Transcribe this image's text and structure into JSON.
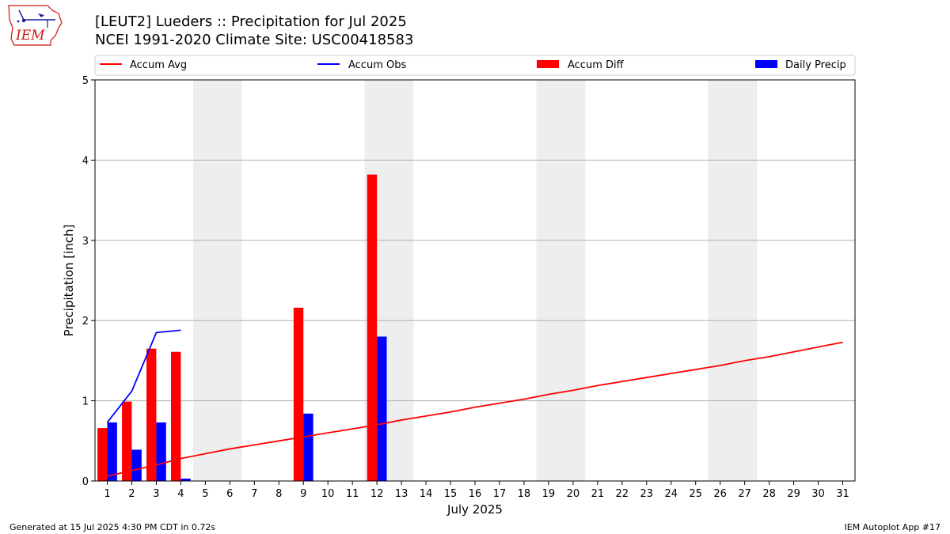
{
  "header": {
    "title_line1": "[LEUT2] Lueders :: Precipitation for Jul 2025",
    "title_line2": "NCEI 1991-2020 Climate Site: USC00418583"
  },
  "logo": {
    "text": "IEM",
    "icon": "iem-logo-icon"
  },
  "footer": {
    "generated": "Generated at 15 Jul 2025 4:30 PM CDT in 0.72s",
    "app": "IEM Autoplot App #17"
  },
  "colors": {
    "accum_avg": "#ff0000",
    "accum_obs": "#0000ff",
    "accum_diff": "#ff0000",
    "daily_precip": "#0000ff",
    "weekend_shade": "#eeeeee",
    "grid": "#b0b0b0"
  },
  "chart_data": {
    "type": "bar",
    "xlabel": "July 2025",
    "ylabel": "Precipitation [inch]",
    "ylim": [
      0,
      5
    ],
    "yticks": [
      0,
      1,
      2,
      3,
      4,
      5
    ],
    "xlim": [
      0.5,
      31.5
    ],
    "days": [
      1,
      2,
      3,
      4,
      5,
      6,
      7,
      8,
      9,
      10,
      11,
      12,
      13,
      14,
      15,
      16,
      17,
      18,
      19,
      20,
      21,
      22,
      23,
      24,
      25,
      26,
      27,
      28,
      29,
      30,
      31
    ],
    "grid": "horizontal",
    "legend_position": "top",
    "weekend_shading": [
      [
        5,
        6
      ],
      [
        12,
        13
      ],
      [
        19,
        20
      ],
      [
        26,
        27
      ]
    ],
    "legend": [
      {
        "key": "accum_avg",
        "label": "Accum Avg",
        "kind": "line"
      },
      {
        "key": "accum_obs",
        "label": "Accum Obs",
        "kind": "line"
      },
      {
        "key": "accum_diff",
        "label": "Accum Diff",
        "kind": "bar"
      },
      {
        "key": "daily_precip",
        "label": "Daily Precip",
        "kind": "bar"
      }
    ],
    "series": [
      {
        "name": "Accum Avg",
        "kind": "line",
        "x": [
          1,
          2,
          3,
          4,
          5,
          6,
          7,
          8,
          9,
          10,
          11,
          12,
          13,
          14,
          15,
          16,
          17,
          18,
          19,
          20,
          21,
          22,
          23,
          24,
          25,
          26,
          27,
          28,
          29,
          30,
          31
        ],
        "values": [
          0.06,
          0.13,
          0.2,
          0.28,
          0.34,
          0.4,
          0.45,
          0.5,
          0.55,
          0.6,
          0.65,
          0.7,
          0.76,
          0.81,
          0.86,
          0.92,
          0.97,
          1.02,
          1.08,
          1.13,
          1.19,
          1.24,
          1.29,
          1.34,
          1.39,
          1.44,
          1.5,
          1.55,
          1.61,
          1.67,
          1.73
        ]
      },
      {
        "name": "Accum Obs",
        "kind": "line",
        "x": [
          1,
          2,
          3,
          4
        ],
        "values": [
          0.73,
          1.12,
          1.85,
          1.88
        ]
      },
      {
        "name": "Accum Diff",
        "kind": "bar",
        "x": [
          1,
          2,
          3,
          4,
          9,
          12
        ],
        "values": [
          0.66,
          0.99,
          1.65,
          1.61,
          2.16,
          3.82
        ]
      },
      {
        "name": "Daily Precip",
        "kind": "bar",
        "x": [
          1,
          2,
          3,
          4,
          9,
          12
        ],
        "values": [
          0.73,
          0.39,
          0.73,
          0.03,
          0.84,
          1.8
        ]
      }
    ]
  }
}
